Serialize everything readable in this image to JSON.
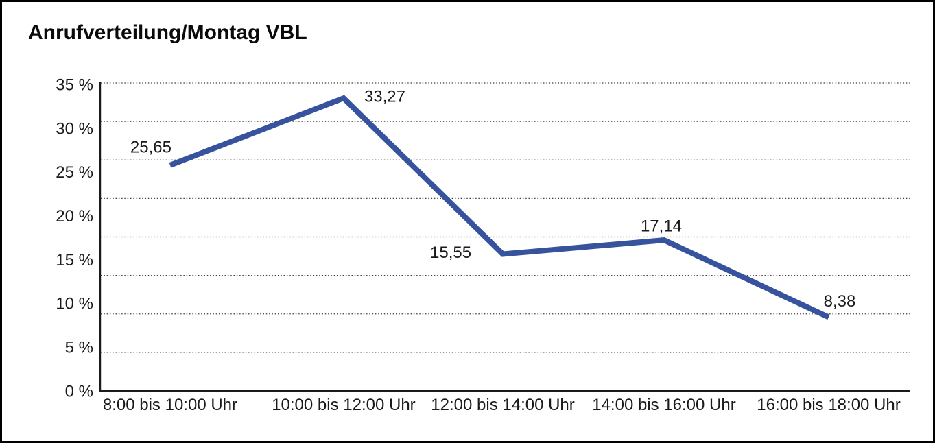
{
  "title": "Anrufverteilung/Montag VBL",
  "colors": {
    "line": "#37539E",
    "axis": "#1a1a1a",
    "gridline": "#3c3c3c",
    "text": "#1a1a1a",
    "background": "#ffffff",
    "frame_border": "#000000"
  },
  "chart_data": {
    "type": "line",
    "title": "Anrufverteilung/Montag VBL",
    "categories": [
      "8:00 bis 10:00 Uhr",
      "10:00 bis 12:00 Uhr",
      "12:00 bis 14:00 Uhr",
      "14:00 bis 16:00 Uhr",
      "16:00 bis 18:00 Uhr"
    ],
    "values": [
      25.65,
      33.27,
      15.55,
      17.14,
      8.38
    ],
    "point_labels": [
      "25,65",
      "33,27",
      "15,55",
      "17,14",
      "8,38"
    ],
    "xlabel": "",
    "ylabel": "",
    "ylim": [
      0,
      35
    ],
    "y_tick_values": [
      35,
      30,
      25,
      20,
      15,
      10,
      5,
      0
    ],
    "y_tick_labels": [
      "35 %",
      "30 %",
      "25 %",
      "20 %",
      "15 %",
      "10 %",
      "5 %",
      "0 %"
    ],
    "grid": "horizontal-dotted",
    "horizontal_gridline_count": 9,
    "legend": "none",
    "markers": "none"
  }
}
